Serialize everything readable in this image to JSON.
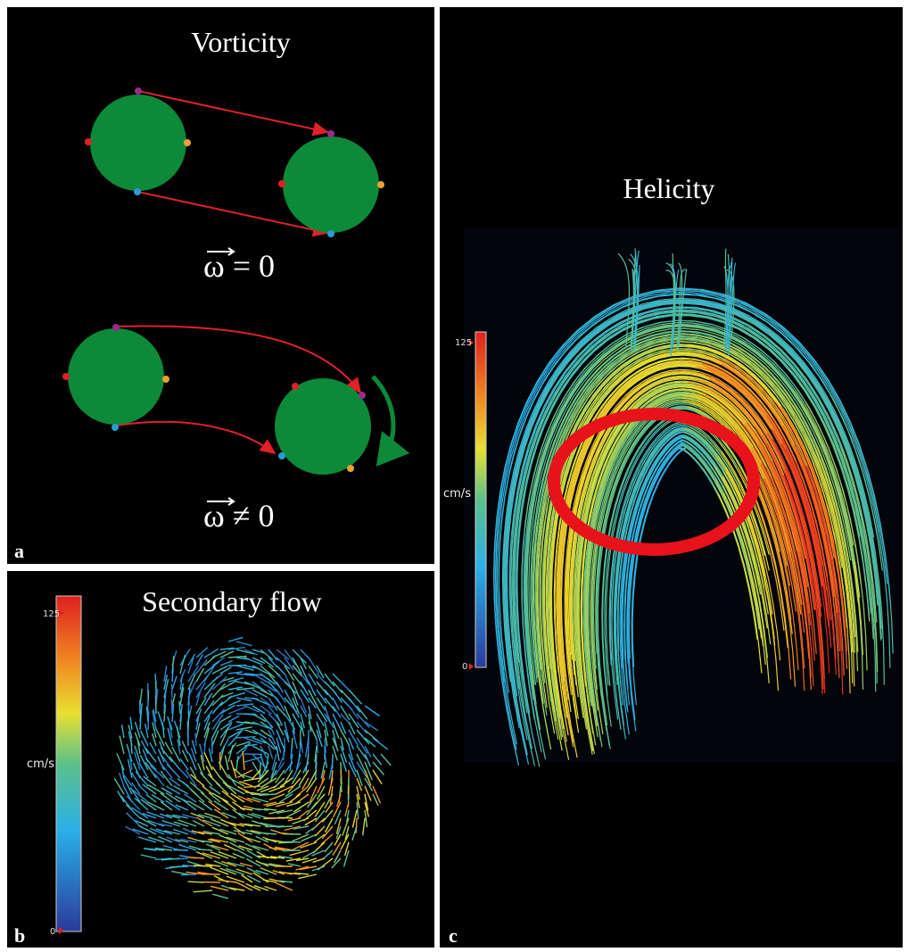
{
  "panels": [
    {
      "letter": "a",
      "title": "Vorticity",
      "equations": [
        "ω = 0",
        "ω ≠ 0"
      ]
    },
    {
      "letter": "b",
      "title": "Secondary flow",
      "colorbar": {
        "max": "125",
        "min": "0",
        "unit": "cm/s"
      }
    },
    {
      "letter": "c",
      "title": "Helicity",
      "colorbar": {
        "max": "125",
        "min": "0",
        "unit": "cm/s"
      }
    }
  ]
}
